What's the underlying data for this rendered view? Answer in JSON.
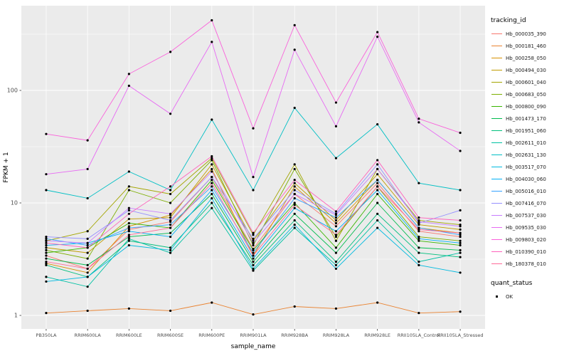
{
  "chart_data": {
    "type": "line",
    "title": "",
    "xlabel": "sample_name",
    "ylabel": "FPKM + 1",
    "y_scale": "log10",
    "y_ticks": [
      1,
      10,
      100
    ],
    "y_tick_labels": [
      "1",
      "10",
      "100"
    ],
    "y_minor": [
      3.1623,
      31.623,
      316.23
    ],
    "grid": true,
    "legend_position": "right",
    "legend": {
      "tracking_title": "tracking_id",
      "quant_title": "quant_status",
      "quant_value": "OK"
    },
    "colors": {
      "panel_bg": "#EBEBEB",
      "grid": "#FFFFFF",
      "point": "#000000",
      "tick_label": "#4D4D4D",
      "axis_title": "#000000"
    },
    "categories": [
      "PB350LA",
      "RRIM600LA",
      "RRIM600LE",
      "RRIM600SE",
      "RRIM600PE",
      "RRIM901LA",
      "RRIM928BA",
      "RRIM928LA",
      "RRIM928LE",
      "RRII105LA_Control",
      "RRII105LA_Stressed"
    ],
    "series": [
      {
        "name": "Hb_000035_390",
        "color": "#F8766D",
        "values": [
          3.4,
          2.6,
          5.8,
          6.8,
          17,
          3.9,
          12,
          6.2,
          15,
          5.6,
          5.0
        ]
      },
      {
        "name": "Hb_000181_460",
        "color": "#EA8331",
        "values": [
          1.05,
          1.1,
          1.15,
          1.1,
          1.3,
          1.02,
          1.2,
          1.15,
          1.3,
          1.05,
          1.08
        ]
      },
      {
        "name": "Hb_000258_050",
        "color": "#D89000",
        "values": [
          2.9,
          2.4,
          6.2,
          7.8,
          20,
          3.4,
          14,
          6.6,
          16,
          6.0,
          5.4
        ]
      },
      {
        "name": "Hb_000494_030",
        "color": "#C09B00",
        "values": [
          4.0,
          3.6,
          7.2,
          7.4,
          22,
          4.6,
          15,
          7.0,
          18,
          6.4,
          5.8
        ]
      },
      {
        "name": "Hb_000601_040",
        "color": "#A3A500",
        "values": [
          4.6,
          5.6,
          14,
          12,
          25,
          5.2,
          22,
          4.6,
          20,
          7.0,
          6.4
        ]
      },
      {
        "name": "Hb_000683_050",
        "color": "#7CAE00",
        "values": [
          3.8,
          3.2,
          13,
          10,
          24,
          4.2,
          20,
          5.0,
          14,
          5.0,
          4.6
        ]
      },
      {
        "name": "Hb_000800_090",
        "color": "#39B600",
        "values": [
          3.6,
          4.0,
          6.6,
          6.0,
          16,
          3.8,
          10,
          4.0,
          12,
          4.6,
          4.2
        ]
      },
      {
        "name": "Hb_001473_170",
        "color": "#00BB4E",
        "values": [
          3.2,
          2.8,
          5.0,
          5.4,
          12,
          3.0,
          8.0,
          3.6,
          10,
          4.0,
          3.8
        ]
      },
      {
        "name": "Hb_001951_060",
        "color": "#00BF7D",
        "values": [
          2.8,
          2.2,
          4.6,
          4.0,
          10,
          2.8,
          7.0,
          3.0,
          8.0,
          3.6,
          3.3
        ]
      },
      {
        "name": "Hb_002611_010",
        "color": "#00C1A3",
        "values": [
          2.2,
          1.8,
          4.8,
          3.6,
          9.0,
          2.5,
          6.0,
          2.8,
          7.0,
          3.0,
          3.6
        ]
      },
      {
        "name": "Hb_002631_130",
        "color": "#00BFC4",
        "values": [
          13,
          11,
          19,
          13,
          55,
          13,
          70,
          25,
          50,
          15,
          13
        ]
      },
      {
        "name": "Hb_003517_070",
        "color": "#00BAE0",
        "values": [
          2.0,
          2.2,
          4.2,
          3.8,
          11,
          2.6,
          6.4,
          2.6,
          6.0,
          2.8,
          2.4
        ]
      },
      {
        "name": "Hb_004030_060",
        "color": "#00B0F6",
        "values": [
          4.2,
          4.4,
          5.6,
          5.0,
          13,
          3.2,
          9.0,
          5.6,
          13,
          4.8,
          4.4
        ]
      },
      {
        "name": "Hb_005016_010",
        "color": "#35A2FF",
        "values": [
          4.8,
          4.2,
          6.0,
          6.4,
          14,
          3.6,
          11,
          7.4,
          16,
          6.0,
          5.2
        ]
      },
      {
        "name": "Hb_007416_070",
        "color": "#9590FF",
        "values": [
          5.0,
          4.8,
          8.6,
          7.0,
          17,
          4.8,
          13,
          8.0,
          22,
          6.6,
          8.6
        ]
      },
      {
        "name": "Hb_007537_030",
        "color": "#C77CFF",
        "values": [
          4.6,
          4.4,
          9.0,
          8.0,
          19,
          4.4,
          12,
          7.8,
          20,
          6.8,
          6.2
        ]
      },
      {
        "name": "Hb_009535_030",
        "color": "#E76BF3",
        "values": [
          18,
          20,
          110,
          62,
          270,
          17,
          230,
          48,
          300,
          52,
          29
        ]
      },
      {
        "name": "Hb_009803_020",
        "color": "#FA62DB",
        "values": [
          41,
          36,
          140,
          220,
          420,
          46,
          380,
          78,
          330,
          56,
          42
        ]
      },
      {
        "name": "Hb_010390_010",
        "color": "#FF62BC",
        "values": [
          4.4,
          4.0,
          8.0,
          14,
          26,
          5.4,
          16,
          8.4,
          24,
          7.4,
          7.0
        ]
      },
      {
        "name": "Hb_180378_010",
        "color": "#FF6A98",
        "values": [
          3.0,
          2.6,
          5.2,
          6.0,
          15,
          3.4,
          9.6,
          5.2,
          14,
          5.8,
          5.4
        ]
      }
    ]
  }
}
